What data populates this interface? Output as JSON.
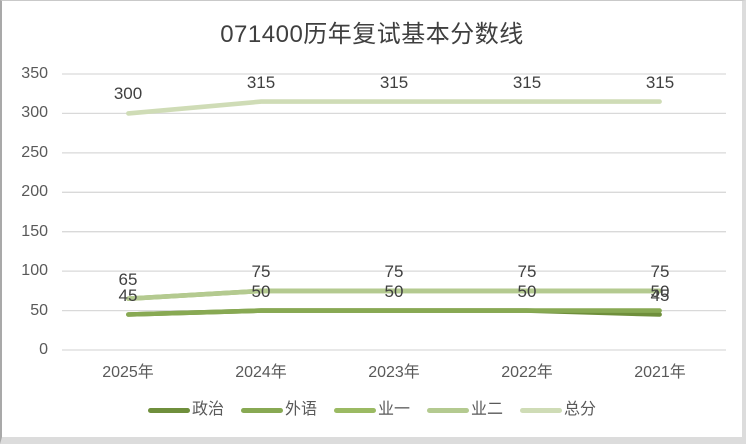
{
  "chart_data": {
    "type": "line",
    "title": "071400历年复试基本分数线",
    "categories": [
      "2025年",
      "2024年",
      "2023年",
      "2022年",
      "2021年"
    ],
    "series": [
      {
        "name": "政治",
        "color": "#6f8f3c",
        "values": [
          45,
          50,
          50,
          50,
          45
        ]
      },
      {
        "name": "外语",
        "color": "#88a953",
        "values": [
          45,
          50,
          50,
          50,
          50
        ]
      },
      {
        "name": "业一",
        "color": "#9bba63",
        "values": [
          65,
          75,
          75,
          75,
          75
        ]
      },
      {
        "name": "业二",
        "color": "#b4ca90",
        "values": [
          65,
          75,
          75,
          75,
          75
        ]
      },
      {
        "name": "总分",
        "color": "#cfdcb6",
        "values": [
          300,
          315,
          315,
          315,
          315
        ]
      }
    ],
    "visible_point_labels": [
      {
        "series": "总分",
        "category_index": 0,
        "value": 300,
        "text": "300"
      },
      {
        "series": "总分",
        "category_index": 1,
        "value": 315,
        "text": "315"
      },
      {
        "series": "总分",
        "category_index": 2,
        "value": 315,
        "text": "315"
      },
      {
        "series": "总分",
        "category_index": 3,
        "value": 315,
        "text": "315"
      },
      {
        "series": "总分",
        "category_index": 4,
        "value": 315,
        "text": "315"
      },
      {
        "series": "业二",
        "category_index": 0,
        "value": 65,
        "text": "65"
      },
      {
        "series": "业二",
        "category_index": 1,
        "value": 75,
        "text": "75"
      },
      {
        "series": "业二",
        "category_index": 2,
        "value": 75,
        "text": "75"
      },
      {
        "series": "业二",
        "category_index": 3,
        "value": 75,
        "text": "75"
      },
      {
        "series": "业二",
        "category_index": 4,
        "value": 75,
        "text": "75"
      },
      {
        "series": "外语",
        "category_index": 0,
        "value": 45,
        "text": "45"
      },
      {
        "series": "外语",
        "category_index": 1,
        "value": 50,
        "text": "50"
      },
      {
        "series": "外语",
        "category_index": 2,
        "value": 50,
        "text": "50"
      },
      {
        "series": "外语",
        "category_index": 3,
        "value": 50,
        "text": "50"
      },
      {
        "series": "外语",
        "category_index": 4,
        "value": 50,
        "text": "50"
      },
      {
        "series": "政治",
        "category_index": 4,
        "value": 45,
        "text": "45"
      }
    ],
    "y_axis": {
      "min": 0,
      "max": 350,
      "step": 50,
      "tick_labels": [
        "0",
        "50",
        "100",
        "150",
        "200",
        "250",
        "300",
        "350"
      ]
    },
    "x_axis": {
      "tick_labels": [
        "2025年",
        "2024年",
        "2023年",
        "2022年",
        "2021年"
      ]
    },
    "legend": {
      "position": "bottom",
      "entries": [
        "政治",
        "外语",
        "业一",
        "业二",
        "总分"
      ]
    },
    "grid": true,
    "gridline_color": "#d9d9d9",
    "axis_text_color": "#595959",
    "title_color": "#3f3f3f",
    "data_label_color": "#404040",
    "background_color": "#ffffff"
  }
}
